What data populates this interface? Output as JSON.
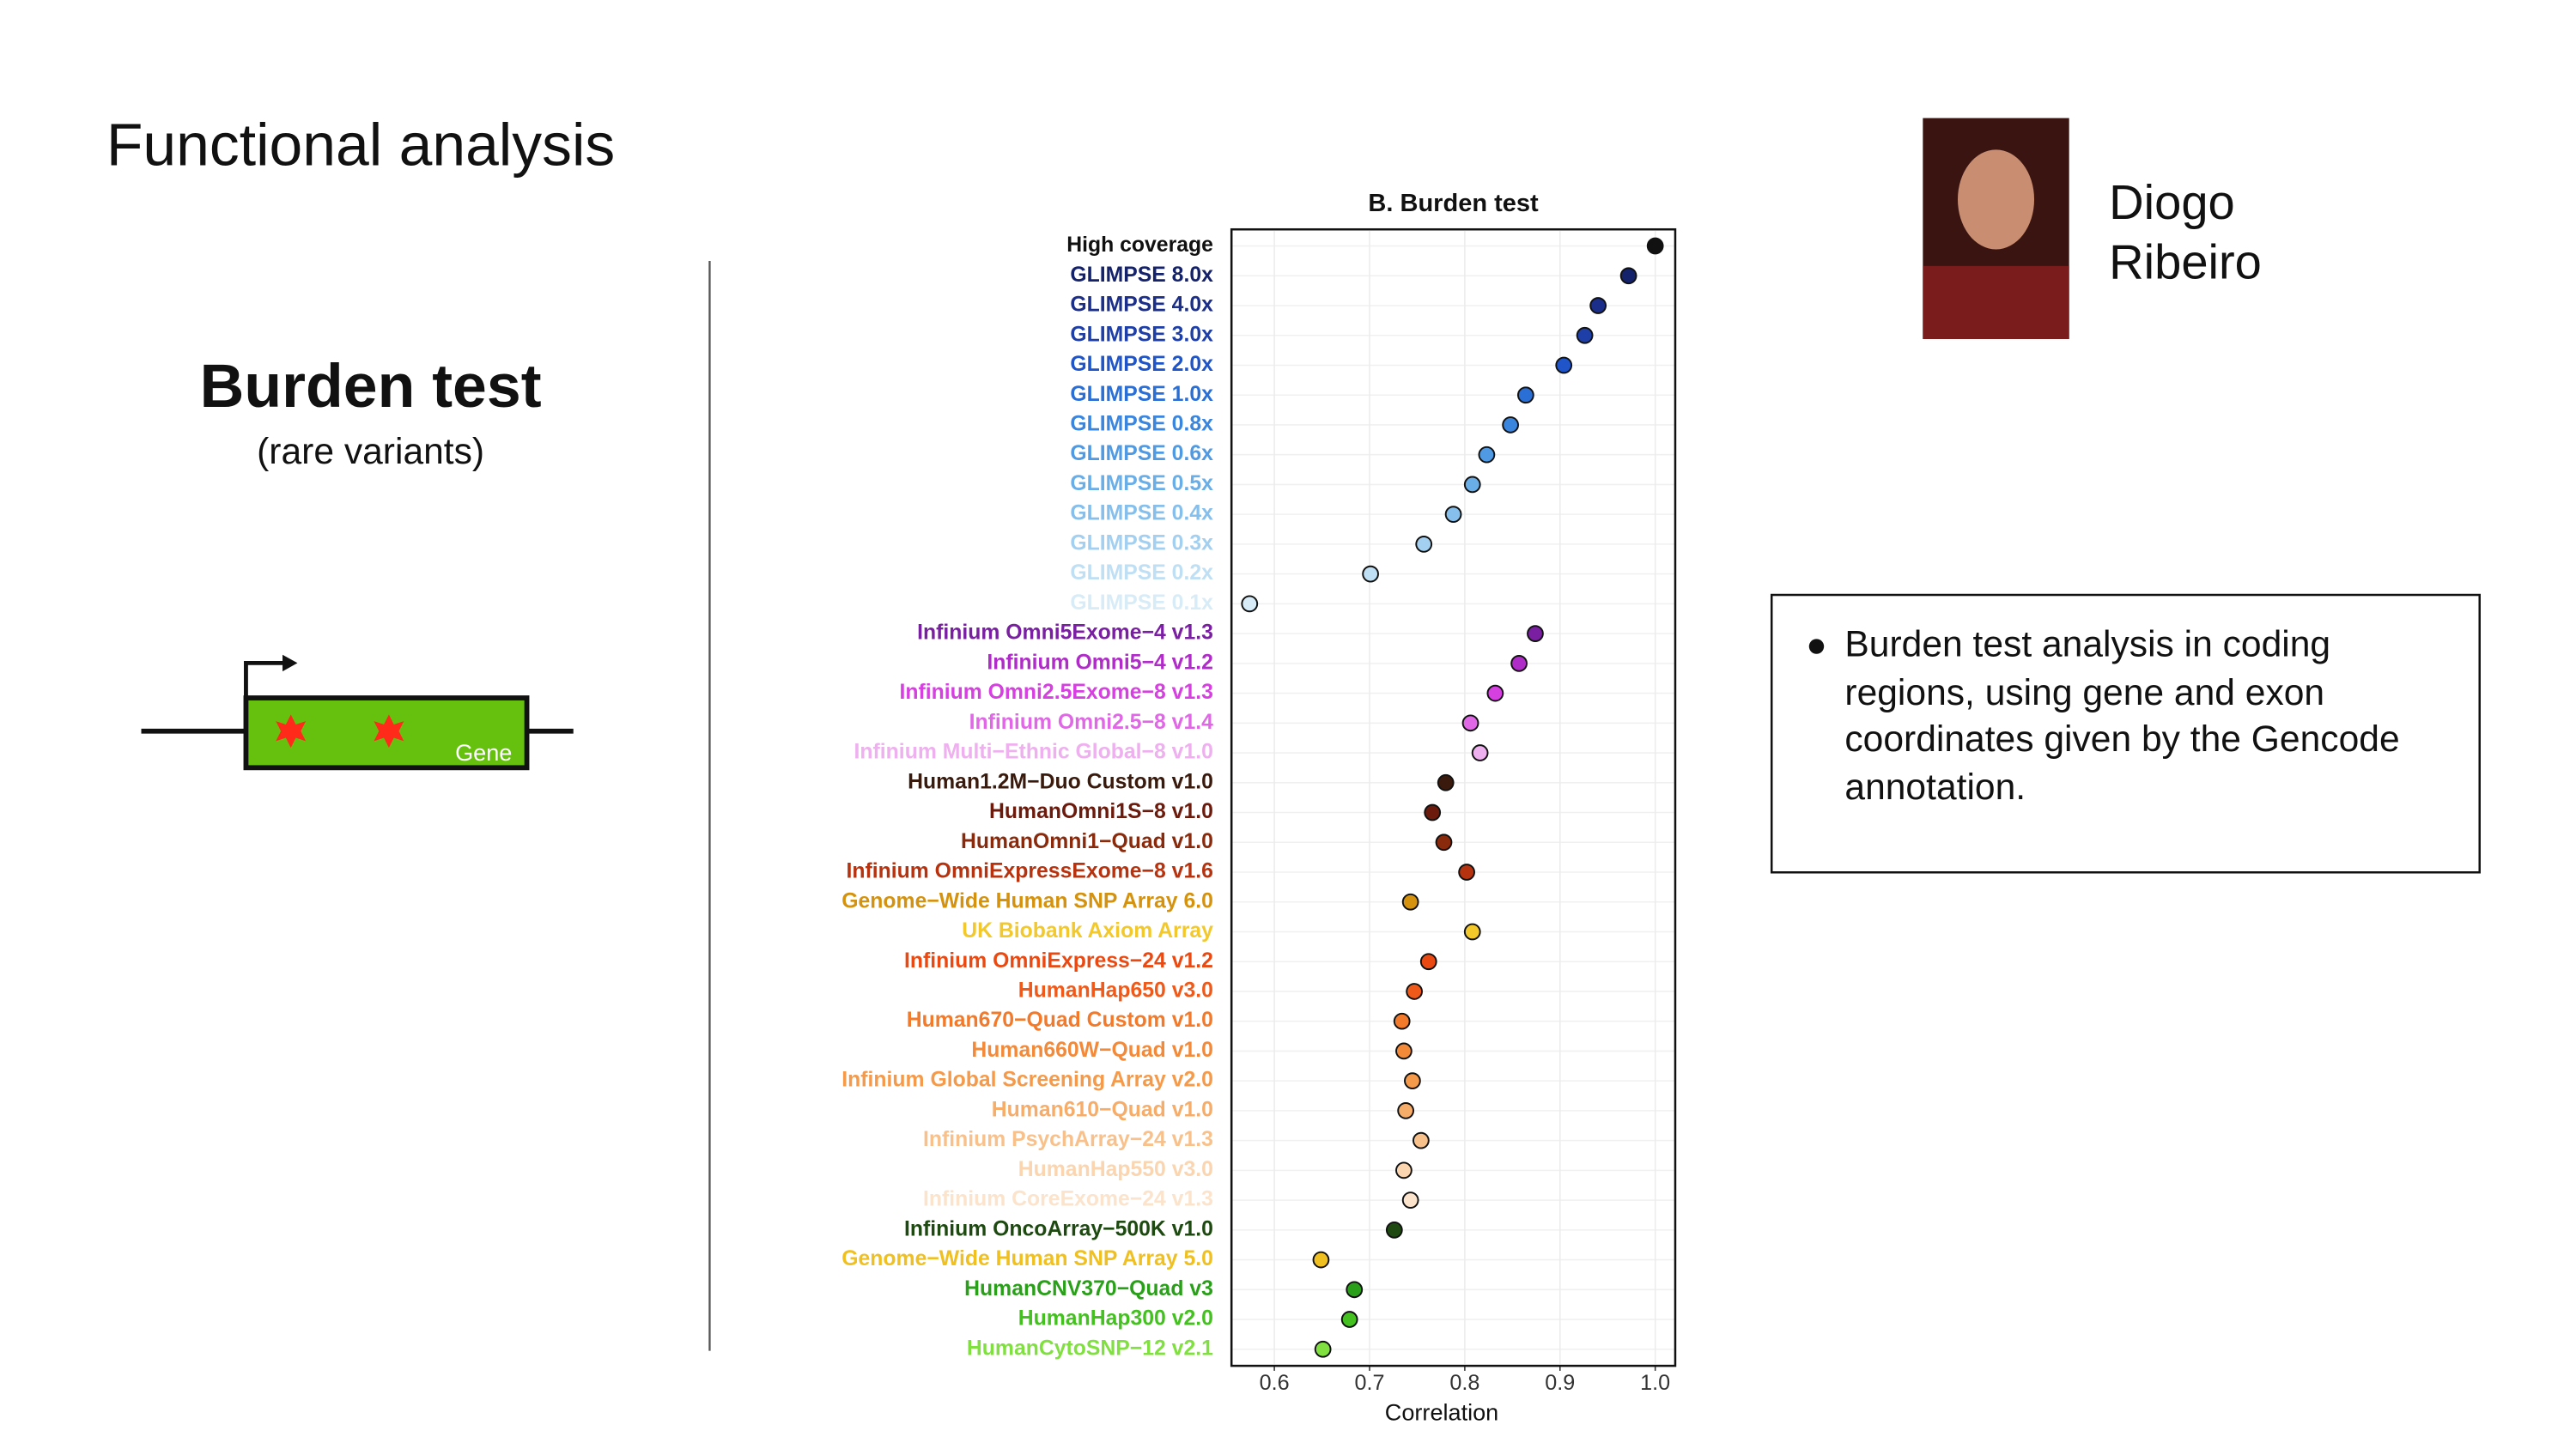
{
  "slide": {
    "title": "Functional analysis",
    "left_heading": "Burden test",
    "left_subheading": "(rare variants)",
    "gene_label": "Gene",
    "speaker": [
      "Diogo",
      "Ribeiro"
    ],
    "bullets": [
      "Burden test analysis in coding regions, using gene and exon coordinates given by the Gencode annotation."
    ]
  },
  "chart_data": {
    "type": "dot",
    "title": "B. Burden test",
    "xlabel": "Correlation",
    "categories": [
      "High coverage",
      "GLIMPSE 8.0x",
      "GLIMPSE 4.0x",
      "GLIMPSE 3.0x",
      "GLIMPSE 2.0x",
      "GLIMPSE 1.0x",
      "GLIMPSE 0.8x",
      "GLIMPSE 0.6x",
      "GLIMPSE 0.5x",
      "GLIMPSE 0.4x",
      "GLIMPSE 0.3x",
      "GLIMPSE 0.2x",
      "GLIMPSE 0.1x",
      "Infinium Omni5Exome−4 v1.3",
      "Infinium Omni5−4 v1.2",
      "Infinium Omni2.5Exome−8 v1.3",
      "Infinium Omni2.5−8 v1.4",
      "Infinium Multi−Ethnic Global−8 v1.0",
      "Human1.2M−Duo Custom v1.0",
      "HumanOmni1S−8 v1.0",
      "HumanOmni1−Quad v1.0",
      "Infinium OmniExpressExome−8 v1.6",
      "Genome−Wide Human SNP Array 6.0",
      "UK Biobank Axiom Array",
      "Infinium OmniExpress−24 v1.2",
      "HumanHap650 v3.0",
      "Human670−Quad Custom v1.0",
      "Human660W−Quad v1.0",
      "Infinium Global Screening Array v2.0",
      "Human610−Quad v1.0",
      "Infinium PsychArray−24 v1.3",
      "HumanHap550 v3.0",
      "Infinium CoreExome−24 v1.3",
      "Infinium OncoArray−500K v1.0",
      "Genome−Wide Human SNP Array 5.0",
      "HumanCNV370−Quad v3",
      "HumanHap300 v2.0",
      "HumanCytoSNP−12 v2.1"
    ],
    "values": [
      1.0,
      0.972,
      0.94,
      0.926,
      0.904,
      0.864,
      0.848,
      0.823,
      0.808,
      0.788,
      0.757,
      0.701,
      0.574,
      0.874,
      0.857,
      0.832,
      0.806,
      0.816,
      0.78,
      0.766,
      0.778,
      0.802,
      0.743,
      0.808,
      0.762,
      0.747,
      0.734,
      0.736,
      0.745,
      0.738,
      0.754,
      0.736,
      0.743,
      0.726,
      0.649,
      0.684,
      0.679,
      0.651
    ],
    "colors": [
      "#111111",
      "#14226b",
      "#1a2e8a",
      "#1e3fa8",
      "#1f55c8",
      "#2a6fd6",
      "#3a85de",
      "#4f9ae3",
      "#6aaee8",
      "#86bfec",
      "#a3d0f0",
      "#bfdff4",
      "#d8ecf8",
      "#7a1fa2",
      "#b02cc8",
      "#d63fe0",
      "#e068e6",
      "#eeb0ee",
      "#3a1a0c",
      "#6b1a0c",
      "#8a2a0c",
      "#b7330f",
      "#d4920f",
      "#f2c82a",
      "#ea4a12",
      "#ef5a1a",
      "#f27a2a",
      "#f28a3a",
      "#f59a4a",
      "#f7ad6a",
      "#f8c18b",
      "#fad5b0",
      "#fbe3cc",
      "#1e4a12",
      "#f0c020",
      "#2aa01a",
      "#44c020",
      "#80e040"
    ],
    "xlim": [
      0.555,
      1.021
    ],
    "xticks": [
      0.6,
      0.7,
      0.8,
      0.9,
      {
        "value": 1,
        "label": "1.0"
      }
    ],
    "grid": true
  }
}
